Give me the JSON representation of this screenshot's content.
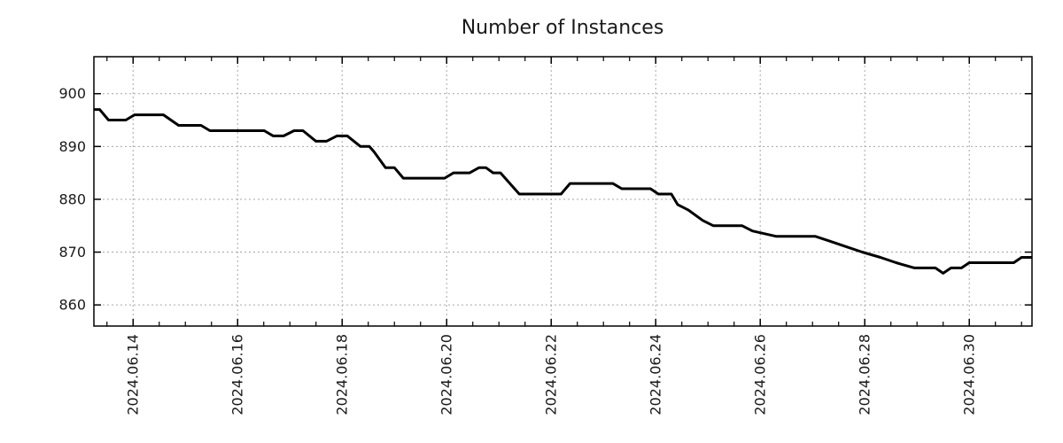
{
  "title": "Number of Instances",
  "colors": {
    "line": "#000000",
    "axis": "#000000",
    "grid": "#a6a6a6",
    "text": "#1a1a1a",
    "background": "#ffffff"
  },
  "chart_data": {
    "type": "line",
    "title": "Number of Instances",
    "xlabel": "",
    "ylabel": "",
    "legend": "none",
    "grid": "dotted, at major ticks",
    "x_range_days_june_2024": [
      13.25,
      31.2
    ],
    "y_range": [
      856,
      907
    ],
    "x_tick_labels": [
      "2024.06.14",
      "2024.06.16",
      "2024.06.18",
      "2024.06.20",
      "2024.06.22",
      "2024.06.24",
      "2024.06.26",
      "2024.06.28",
      "2024.06.30"
    ],
    "x_tick_days": [
      14,
      16,
      18,
      20,
      22,
      24,
      26,
      28,
      30
    ],
    "x_minor_tick_days": [
      13.5,
      14.5,
      15,
      15.5,
      16.5,
      17,
      17.5,
      18.5,
      19,
      19.5,
      20.5,
      21,
      21.5,
      22.5,
      23,
      23.5,
      24.5,
      25,
      25.5,
      26.5,
      27,
      27.5,
      28.5,
      29,
      29.5,
      30.5,
      31
    ],
    "y_tick_values": [
      860,
      870,
      880,
      890,
      900
    ],
    "series": [
      {
        "name": "instances",
        "color": "#000000",
        "points": [
          [
            13.25,
            897
          ],
          [
            13.36,
            897
          ],
          [
            13.53,
            895
          ],
          [
            13.86,
            895
          ],
          [
            14.03,
            896
          ],
          [
            14.58,
            896
          ],
          [
            14.87,
            894
          ],
          [
            15.3,
            894
          ],
          [
            15.47,
            893
          ],
          [
            16.51,
            893
          ],
          [
            16.68,
            892
          ],
          [
            16.88,
            892
          ],
          [
            17.08,
            893
          ],
          [
            17.25,
            893
          ],
          [
            17.5,
            891
          ],
          [
            17.7,
            891
          ],
          [
            17.9,
            892
          ],
          [
            18.1,
            892
          ],
          [
            18.35,
            890
          ],
          [
            18.52,
            890
          ],
          [
            18.61,
            889
          ],
          [
            18.83,
            886
          ],
          [
            19.0,
            886
          ],
          [
            19.17,
            884
          ],
          [
            19.96,
            884
          ],
          [
            20.13,
            885
          ],
          [
            20.44,
            885
          ],
          [
            20.62,
            886
          ],
          [
            20.75,
            886
          ],
          [
            20.89,
            885
          ],
          [
            21.03,
            885
          ],
          [
            21.39,
            881
          ],
          [
            22.19,
            881
          ],
          [
            22.36,
            883
          ],
          [
            23.18,
            883
          ],
          [
            23.35,
            882
          ],
          [
            23.9,
            882
          ],
          [
            24.05,
            881
          ],
          [
            24.3,
            881
          ],
          [
            24.42,
            879
          ],
          [
            24.62,
            878
          ],
          [
            24.9,
            876
          ],
          [
            25.1,
            875
          ],
          [
            25.65,
            875
          ],
          [
            25.85,
            874
          ],
          [
            26.3,
            873
          ],
          [
            27.05,
            873
          ],
          [
            27.35,
            872
          ],
          [
            27.65,
            871
          ],
          [
            27.95,
            870
          ],
          [
            28.3,
            869
          ],
          [
            28.6,
            868
          ],
          [
            28.95,
            867
          ],
          [
            29.35,
            867
          ],
          [
            29.5,
            866
          ],
          [
            29.65,
            867
          ],
          [
            29.85,
            867
          ],
          [
            30.0,
            868
          ],
          [
            30.85,
            868
          ],
          [
            31.0,
            869
          ],
          [
            31.2,
            869
          ]
        ]
      }
    ]
  }
}
